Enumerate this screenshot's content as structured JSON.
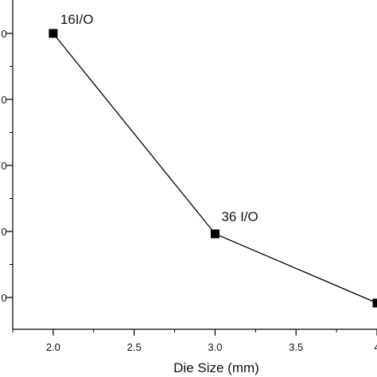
{
  "chart_data": {
    "type": "line",
    "title": "",
    "xlabel": "Die Size (mm)",
    "ylabel": "",
    "xlim": [
      1.75,
      4.0
    ],
    "x_ticks": [
      2.0,
      2.5,
      3.0,
      3.5,
      4.0
    ],
    "x_tick_labels": [
      "2.0",
      "2.5",
      "3.0",
      "3.5",
      "4"
    ],
    "y_tick_labels": [
      "0",
      "0",
      "0",
      "0",
      "0"
    ],
    "grid": false,
    "legend": "none",
    "series": [
      {
        "x": [
          2.0,
          3.0,
          4.0
        ],
        "marker": "square",
        "color": "#000000"
      }
    ],
    "annotations": [
      {
        "text": "16I/O",
        "x": 2.0
      },
      {
        "text": "36 I/O",
        "x": 3.0
      }
    ]
  }
}
